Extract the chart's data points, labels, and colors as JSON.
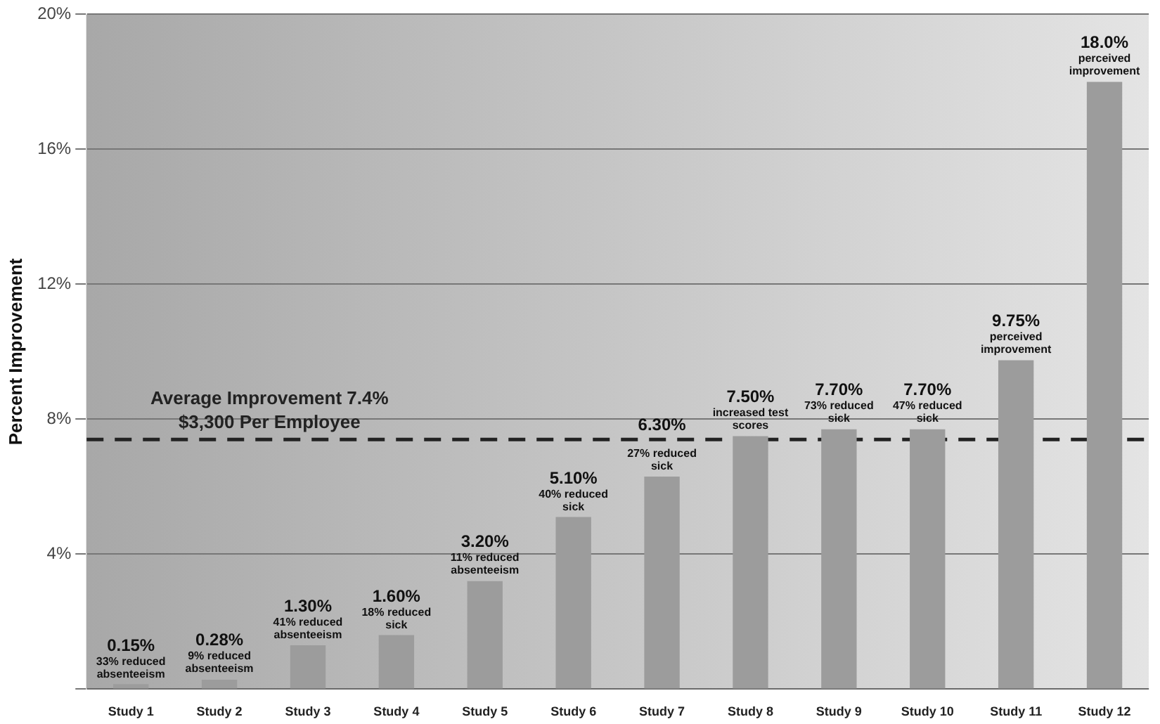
{
  "chart_data": {
    "type": "bar",
    "ylabel": "Percent Improvement",
    "categories": [
      "Study 1",
      "Study 2",
      "Study 3",
      "Study 4",
      "Study 5",
      "Study 6",
      "Study 7",
      "Study 8",
      "Study 9",
      "Study 10",
      "Study 11",
      "Study 12"
    ],
    "values": [
      0.15,
      0.28,
      1.3,
      1.6,
      3.2,
      5.1,
      6.3,
      7.5,
      7.7,
      7.7,
      9.75,
      18.0
    ],
    "value_labels": [
      "0.15%",
      "0.28%",
      "1.30%",
      "1.60%",
      "3.20%",
      "5.10%",
      "6.30%",
      "7.50%",
      "7.70%",
      "7.70%",
      "9.75%",
      "18.0%"
    ],
    "color": "#9c9c9c",
    "ylim": [
      0,
      20
    ],
    "yticks": [
      {
        "value": 0,
        "label": null
      },
      {
        "value": 4,
        "label": "4%"
      },
      {
        "value": 8,
        "label": "8%"
      },
      {
        "value": 12,
        "label": "12%"
      },
      {
        "value": 16,
        "label": "16%"
      },
      {
        "value": 20,
        "label": "20%"
      }
    ],
    "grid": "y",
    "ref_lines": [
      {
        "axis": "y",
        "value": 7.4,
        "label": "Average Improvement 7.4%\n$3,300 Per Employee",
        "color": "#222222",
        "line_style": "dashed"
      }
    ],
    "annotations": [
      {
        "text": "33% reduced absenteeism",
        "x": "Study 1",
        "y": 0.15
      },
      {
        "text": "9% reduced absenteeism",
        "x": "Study 2",
        "y": 0.28
      },
      {
        "text": "41% reduced absenteeism",
        "x": "Study 3",
        "y": 1.3
      },
      {
        "text": "18% reduced sick",
        "x": "Study 4",
        "y": 1.6
      },
      {
        "text": "11% reduced absenteeism",
        "x": "Study 5",
        "y": 3.2
      },
      {
        "text": "40% reduced sick",
        "x": "Study 6",
        "y": 5.1
      },
      {
        "text": "27% reduced sick",
        "x": "Study 7",
        "y": 6.3
      },
      {
        "text": "increased test scores",
        "x": "Study 8",
        "y": 7.5
      },
      {
        "text": "73% reduced sick",
        "x": "Study 9",
        "y": 7.7
      },
      {
        "text": "47% reduced sick",
        "x": "Study 10",
        "y": 7.7
      },
      {
        "text": "perceived improvement",
        "x": "Study 11",
        "y": 9.75
      },
      {
        "text": "perceived improvement",
        "x": "Study 12",
        "y": 18.0
      }
    ],
    "legend": false
  }
}
